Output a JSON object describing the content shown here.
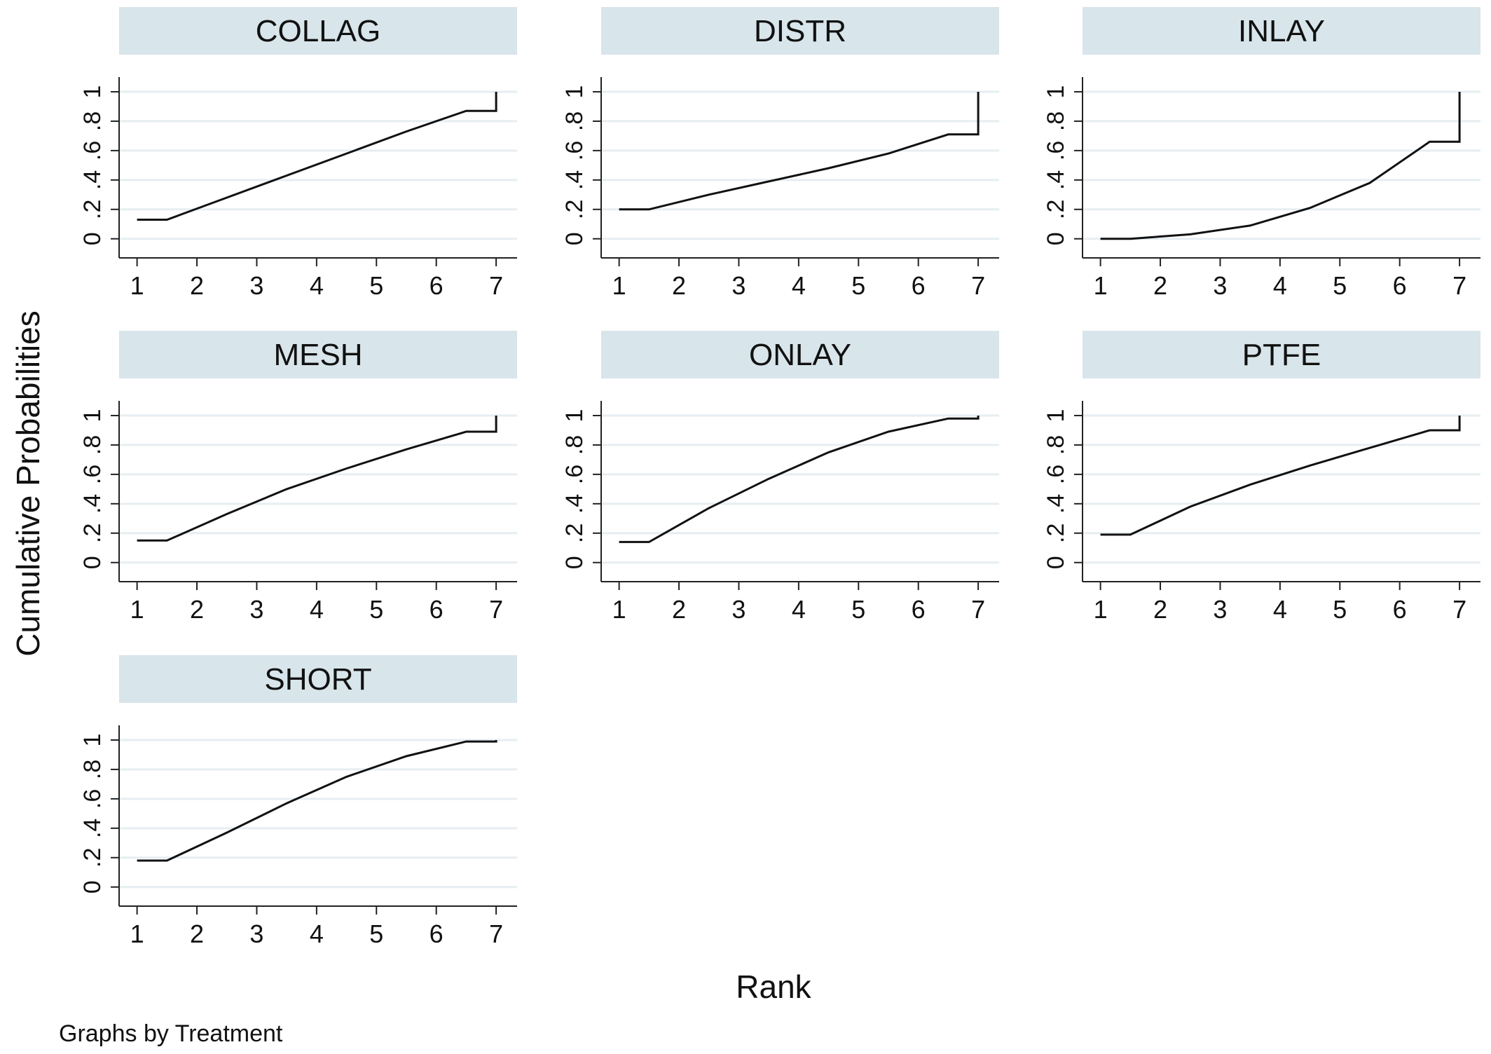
{
  "figure": {
    "ylabel": "Cumulative Probabilities",
    "xlabel": "Rank",
    "note": "Graphs by Treatment"
  },
  "chart_data": [
    {
      "type": "line",
      "title": "COLLAG",
      "x": [
        1,
        1.5,
        2.5,
        3.5,
        4.5,
        5.5,
        6.5,
        7,
        7
      ],
      "y": [
        0.13,
        0.13,
        0.28,
        0.43,
        0.58,
        0.73,
        0.87,
        0.87,
        1.0
      ],
      "xticks": [
        "1",
        "2",
        "3",
        "4",
        "5",
        "6",
        "7"
      ],
      "yticks": [
        "0",
        ".2",
        ".4",
        ".6",
        ".8",
        "1"
      ],
      "xlim": [
        0.7,
        7.35
      ],
      "ylim": [
        -0.13,
        1.1
      ],
      "grid": true
    },
    {
      "type": "line",
      "title": "DISTR",
      "x": [
        1,
        1.5,
        2.5,
        3.5,
        4.5,
        5.5,
        6.5,
        7,
        7
      ],
      "y": [
        0.2,
        0.2,
        0.3,
        0.39,
        0.48,
        0.58,
        0.71,
        0.71,
        1.0
      ],
      "xticks": [
        "1",
        "2",
        "3",
        "4",
        "5",
        "6",
        "7"
      ],
      "yticks": [
        "0",
        ".2",
        ".4",
        ".6",
        ".8",
        "1"
      ],
      "xlim": [
        0.7,
        7.35
      ],
      "ylim": [
        -0.13,
        1.1
      ],
      "grid": true
    },
    {
      "type": "line",
      "title": "INLAY",
      "x": [
        1,
        1.5,
        2.5,
        3.5,
        4.5,
        5.5,
        6.5,
        7,
        7
      ],
      "y": [
        0.0,
        0.0,
        0.03,
        0.09,
        0.21,
        0.38,
        0.66,
        0.66,
        1.0
      ],
      "xticks": [
        "1",
        "2",
        "3",
        "4",
        "5",
        "6",
        "7"
      ],
      "yticks": [
        "0",
        ".2",
        ".4",
        ".6",
        ".8",
        "1"
      ],
      "xlim": [
        0.7,
        7.35
      ],
      "ylim": [
        -0.13,
        1.1
      ],
      "grid": true
    },
    {
      "type": "line",
      "title": "MESH",
      "x": [
        1,
        1.5,
        2.5,
        3.5,
        4.5,
        5.5,
        6.5,
        7,
        7
      ],
      "y": [
        0.15,
        0.15,
        0.33,
        0.5,
        0.64,
        0.77,
        0.89,
        0.89,
        1.0
      ],
      "xticks": [
        "1",
        "2",
        "3",
        "4",
        "5",
        "6",
        "7"
      ],
      "yticks": [
        "0",
        ".2",
        ".4",
        ".6",
        ".8",
        "1"
      ],
      "xlim": [
        0.7,
        7.35
      ],
      "ylim": [
        -0.13,
        1.1
      ],
      "grid": true
    },
    {
      "type": "line",
      "title": "ONLAY",
      "x": [
        1,
        1.5,
        2.5,
        3.5,
        4.5,
        5.5,
        6.5,
        7,
        7
      ],
      "y": [
        0.14,
        0.14,
        0.37,
        0.57,
        0.75,
        0.89,
        0.98,
        0.98,
        1.0
      ],
      "xticks": [
        "1",
        "2",
        "3",
        "4",
        "5",
        "6",
        "7"
      ],
      "yticks": [
        "0",
        ".2",
        ".4",
        ".6",
        ".8",
        "1"
      ],
      "xlim": [
        0.7,
        7.35
      ],
      "ylim": [
        -0.13,
        1.1
      ],
      "grid": true
    },
    {
      "type": "line",
      "title": "PTFE",
      "x": [
        1,
        1.5,
        2.5,
        3.5,
        4.5,
        5.5,
        6.5,
        7,
        7
      ],
      "y": [
        0.19,
        0.19,
        0.38,
        0.53,
        0.66,
        0.78,
        0.9,
        0.9,
        1.0
      ],
      "xticks": [
        "1",
        "2",
        "3",
        "4",
        "5",
        "6",
        "7"
      ],
      "yticks": [
        "0",
        ".2",
        ".4",
        ".6",
        ".8",
        "1"
      ],
      "xlim": [
        0.7,
        7.35
      ],
      "ylim": [
        -0.13,
        1.1
      ],
      "grid": true
    },
    {
      "type": "line",
      "title": "SHORT",
      "x": [
        1,
        1.5,
        2.5,
        3.5,
        4.5,
        5.5,
        6.5,
        7,
        7
      ],
      "y": [
        0.18,
        0.18,
        0.37,
        0.57,
        0.75,
        0.89,
        0.99,
        0.99,
        1.0
      ],
      "xticks": [
        "1",
        "2",
        "3",
        "4",
        "5",
        "6",
        "7"
      ],
      "yticks": [
        "0",
        ".2",
        ".4",
        ".6",
        ".8",
        "1"
      ],
      "xlim": [
        0.7,
        7.35
      ],
      "ylim": [
        -0.13,
        1.1
      ],
      "grid": true
    }
  ]
}
